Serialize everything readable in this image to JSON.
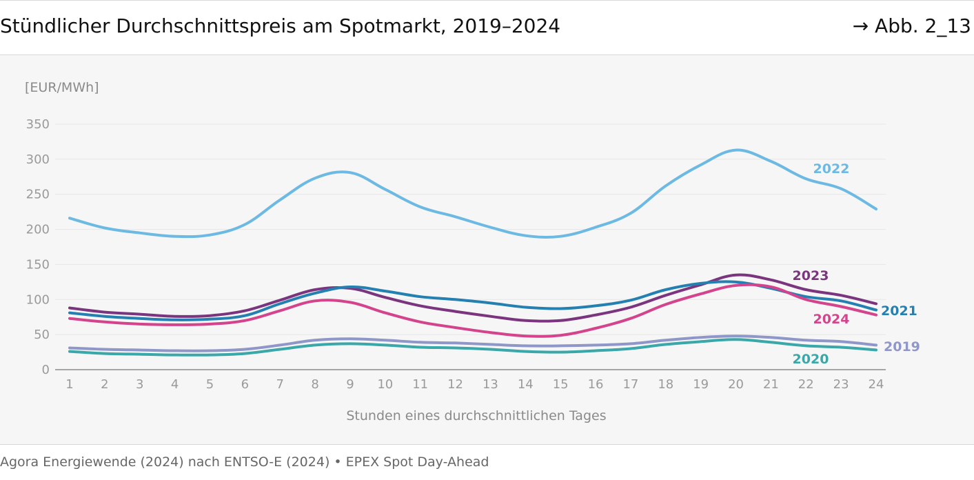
{
  "header": {
    "title": "Stündlicher Durchschnittspreis am Spotmarkt, 2019–2024",
    "figure_ref": "→ Abb. 2_13"
  },
  "footer": {
    "source": "Agora Energiewende (2024) nach ENTSO-E (2024) • EPEX Spot Day-Ahead"
  },
  "chart_data": {
    "type": "line",
    "title": "Stündlicher Durchschnittspreis am Spotmarkt, 2019–2024",
    "unit_label": "[EUR/MWh]",
    "xlabel": "Stunden eines durchschnittlichen Tages",
    "ylabel": "",
    "x": [
      1,
      2,
      3,
      4,
      5,
      6,
      7,
      8,
      9,
      10,
      11,
      12,
      13,
      14,
      15,
      16,
      17,
      18,
      19,
      20,
      21,
      22,
      23,
      24
    ],
    "xlim": [
      1,
      24
    ],
    "ylim": [
      0,
      350
    ],
    "yticks": [
      0,
      50,
      100,
      150,
      200,
      250,
      300,
      350
    ],
    "grid": true,
    "legend": "inline labels at right end of lines",
    "series": [
      {
        "name": "2022",
        "color": "#6cb9e3",
        "values": [
          216,
          202,
          195,
          190,
          192,
          207,
          242,
          273,
          281,
          257,
          232,
          218,
          203,
          191,
          190,
          203,
          223,
          262,
          292,
          313,
          297,
          272,
          258,
          229
        ]
      },
      {
        "name": "2023",
        "color": "#7b357f",
        "values": [
          88,
          82,
          79,
          76,
          77,
          84,
          99,
          114,
          116,
          103,
          91,
          83,
          76,
          70,
          70,
          78,
          89,
          106,
          121,
          135,
          128,
          114,
          106,
          94
        ]
      },
      {
        "name": "2021",
        "color": "#2480b0",
        "values": [
          81,
          76,
          73,
          71,
          72,
          77,
          94,
          109,
          118,
          112,
          104,
          100,
          95,
          89,
          87,
          91,
          99,
          114,
          123,
          125,
          116,
          104,
          98,
          85
        ]
      },
      {
        "name": "2024",
        "color": "#d4448d",
        "values": [
          73,
          68,
          65,
          64,
          65,
          70,
          84,
          98,
          96,
          81,
          68,
          60,
          53,
          48,
          49,
          59,
          73,
          93,
          108,
          120,
          118,
          100,
          90,
          78
        ]
      },
      {
        "name": "2019",
        "color": "#8f97c8",
        "values": [
          31,
          29,
          28,
          27,
          27,
          29,
          35,
          42,
          44,
          42,
          39,
          38,
          36,
          34,
          34,
          35,
          37,
          42,
          46,
          48,
          46,
          42,
          40,
          35
        ]
      },
      {
        "name": "2020",
        "color": "#3aa7a8",
        "values": [
          26,
          23,
          22,
          21,
          21,
          23,
          29,
          35,
          37,
          35,
          32,
          31,
          29,
          26,
          25,
          27,
          30,
          36,
          40,
          43,
          39,
          34,
          32,
          28
        ]
      }
    ]
  }
}
